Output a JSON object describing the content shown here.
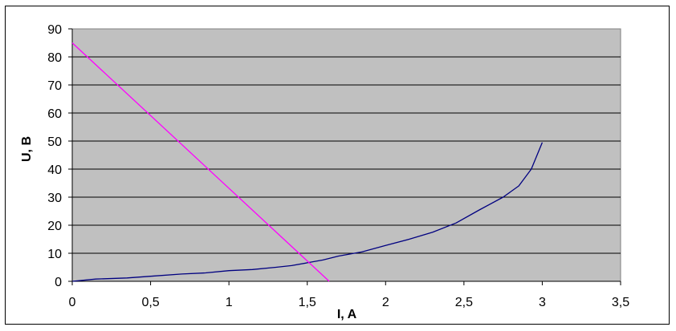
{
  "chart_data": {
    "type": "line",
    "title": "",
    "xlabel": "I, A",
    "ylabel": "U, B",
    "xlim": [
      0,
      3.5
    ],
    "ylim": [
      0,
      90
    ],
    "x_ticks": [
      "0",
      "0,5",
      "1",
      "1,5",
      "2",
      "2,5",
      "3",
      "3,5"
    ],
    "y_ticks": [
      "0",
      "10",
      "20",
      "30",
      "40",
      "50",
      "60",
      "70",
      "80",
      "90"
    ],
    "grid": "horizontal",
    "plot_background": "#c0c0c0",
    "series": [
      {
        "color": "#000080",
        "points": [
          [
            0,
            0
          ],
          [
            0.15,
            0.8
          ],
          [
            0.35,
            1.2
          ],
          [
            0.5,
            1.8
          ],
          [
            0.7,
            2.6
          ],
          [
            0.85,
            3.0
          ],
          [
            1.0,
            3.8
          ],
          [
            1.15,
            4.2
          ],
          [
            1.3,
            5.0
          ],
          [
            1.4,
            5.6
          ],
          [
            1.5,
            6.6
          ],
          [
            1.6,
            7.6
          ],
          [
            1.7,
            9.0
          ],
          [
            1.85,
            10.5
          ],
          [
            2.0,
            12.8
          ],
          [
            2.15,
            15.0
          ],
          [
            2.3,
            17.5
          ],
          [
            2.45,
            20.8
          ],
          [
            2.6,
            25.5
          ],
          [
            2.75,
            30.0
          ],
          [
            2.85,
            34.0
          ],
          [
            2.93,
            40.0
          ],
          [
            3.0,
            49.5
          ]
        ]
      },
      {
        "color": "#ff00ff",
        "points": [
          [
            0,
            85
          ],
          [
            1.64,
            0
          ]
        ]
      }
    ]
  }
}
